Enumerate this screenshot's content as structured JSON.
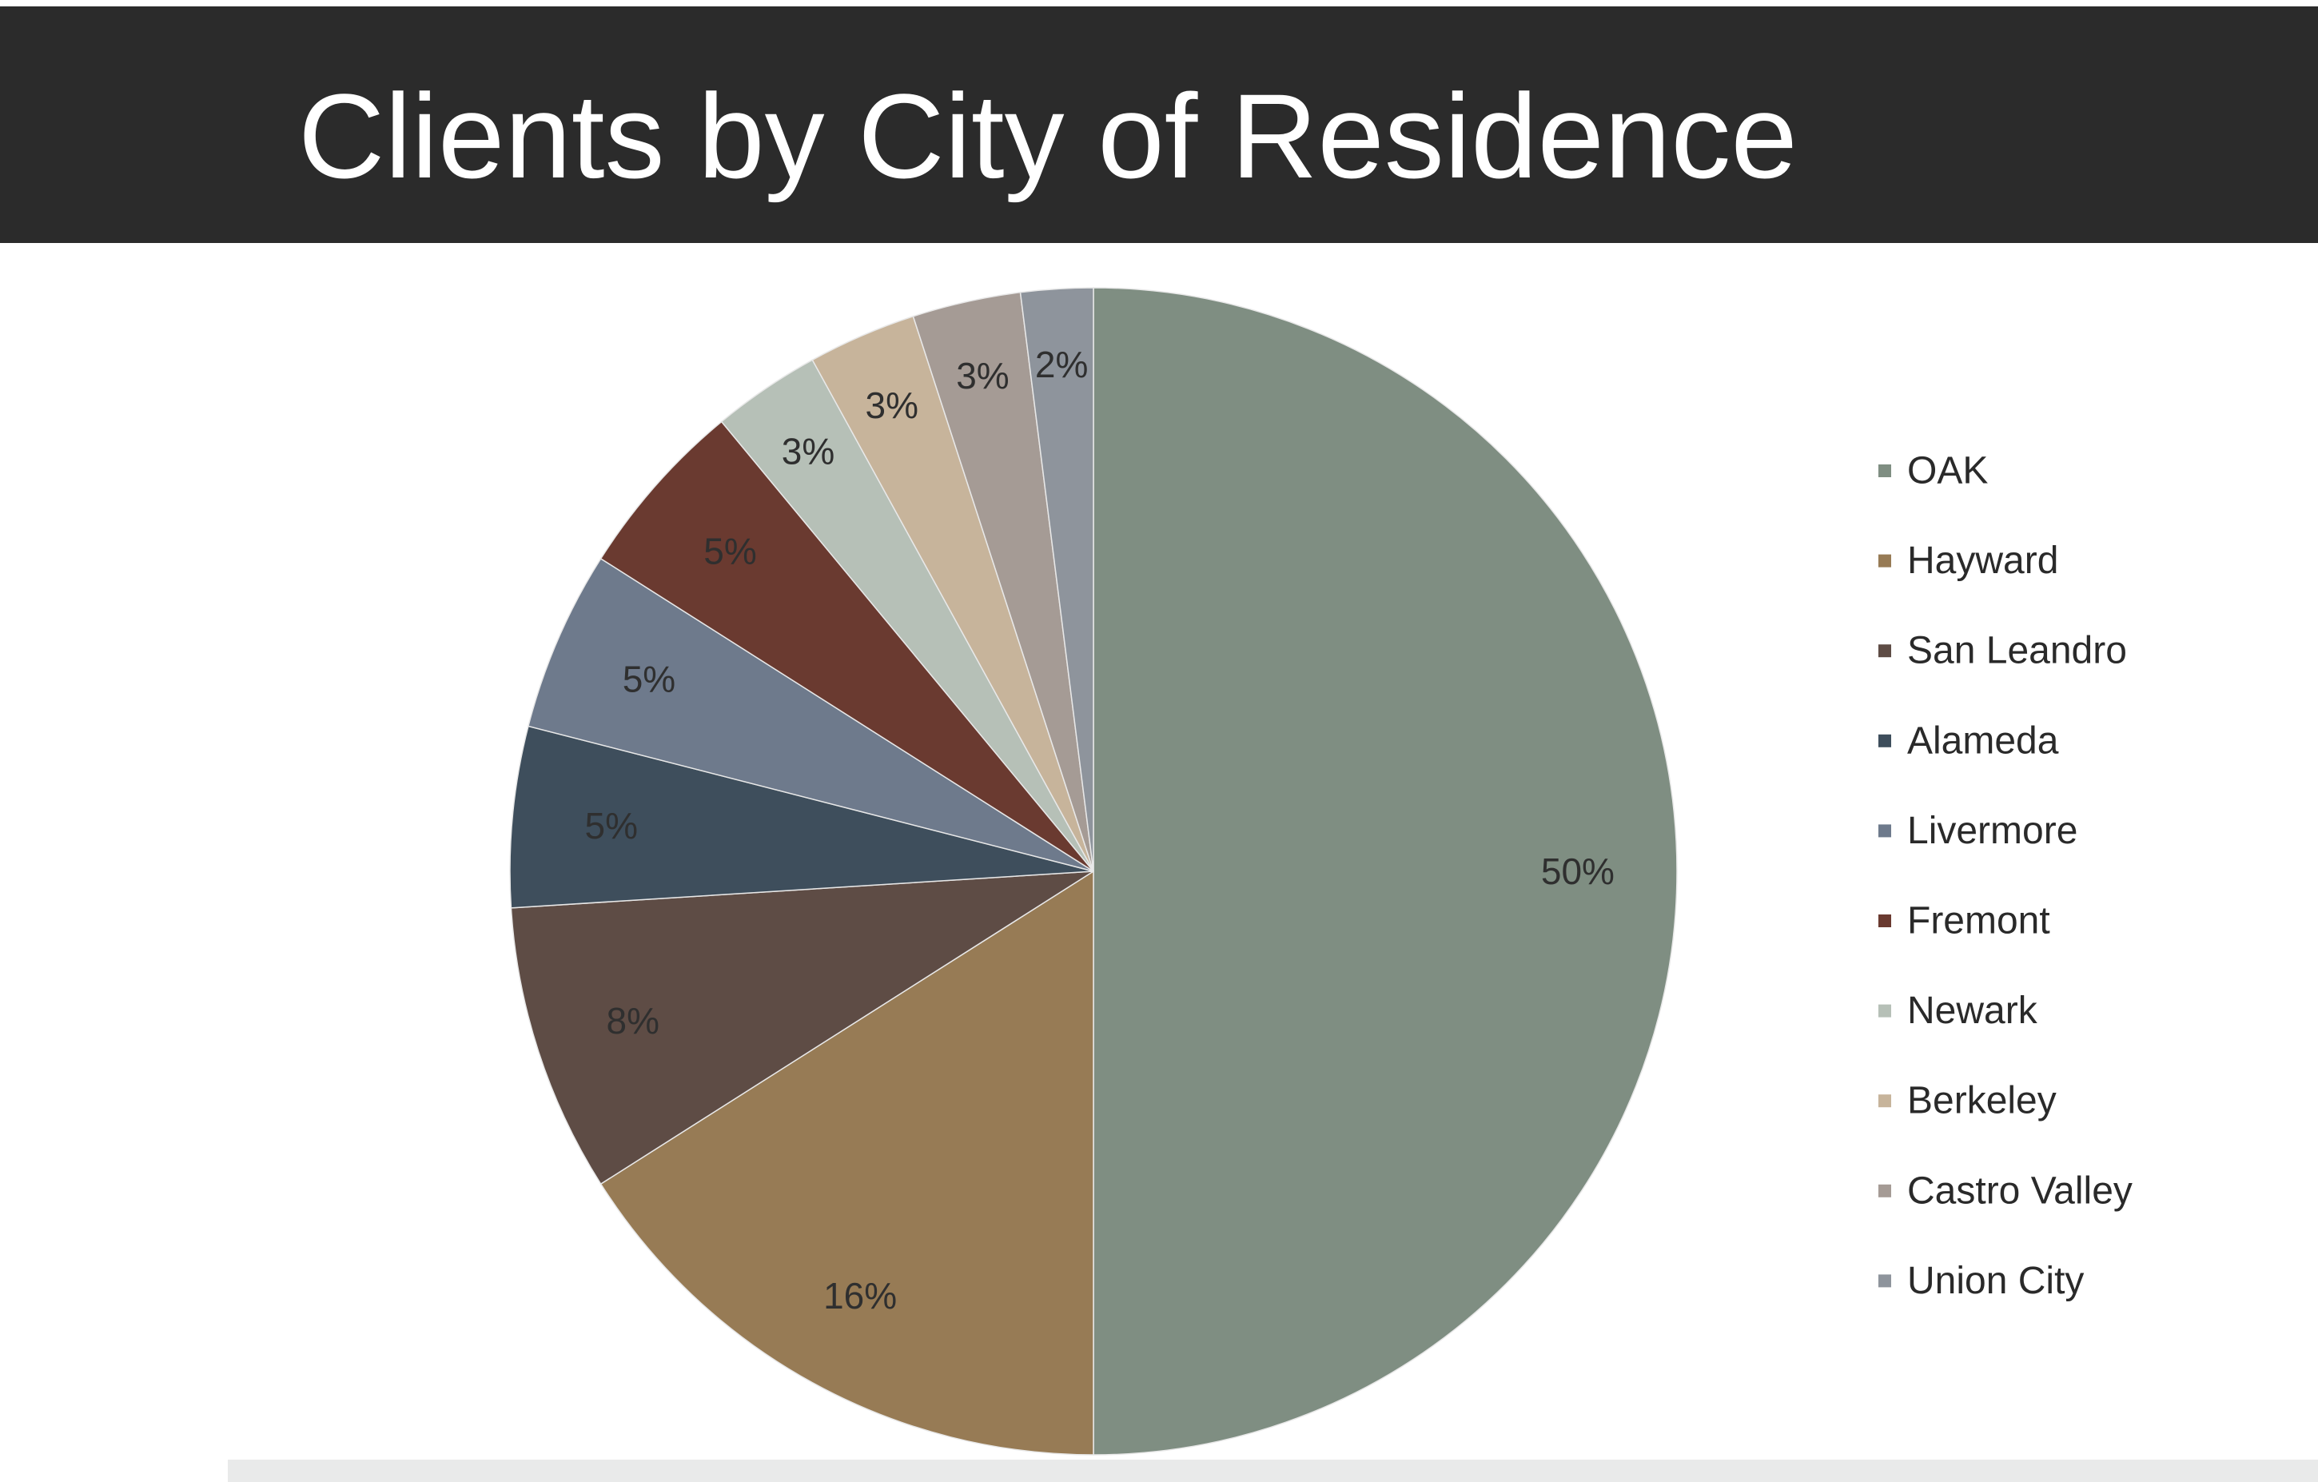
{
  "slide": {
    "title": "Clients by City of Residence"
  },
  "chart_data": {
    "type": "pie",
    "title": "Clients by City of Residence",
    "categories": [
      "OAK",
      "Hayward",
      "San Leandro",
      "Alameda",
      "Livermore",
      "Fremont",
      "Newark",
      "Berkeley",
      "Castro Valley",
      "Union City"
    ],
    "values": [
      50,
      16,
      8,
      5,
      5,
      5,
      3,
      3,
      3,
      2
    ],
    "value_labels": [
      "50%",
      "16%",
      "8%",
      "5%",
      "5%",
      "5%",
      "3%",
      "3%",
      "3%",
      "2%"
    ],
    "colors": [
      "#7f8e82",
      "#977b55",
      "#5e4c45",
      "#3e4e5c",
      "#6e7a8c",
      "#6a3a30",
      "#b6c0b7",
      "#c7b49b",
      "#a59b95",
      "#8e949c"
    ],
    "legend_position": "right"
  }
}
